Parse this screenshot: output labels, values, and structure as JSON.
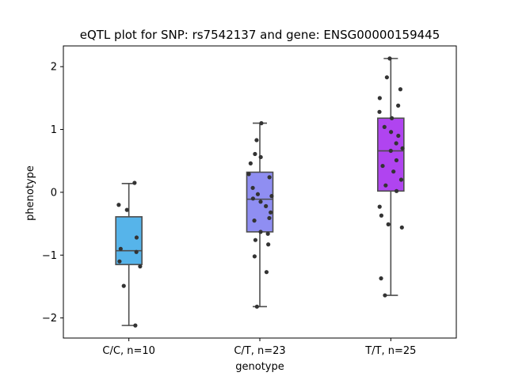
{
  "chart_data": {
    "type": "box",
    "title": "eQTL plot for SNP: rs7542137 and gene: ENSG00000159445",
    "xlabel": "genotype",
    "ylabel": "phenotype",
    "ylim": [
      -2.32,
      2.33
    ],
    "yticks": [
      -2,
      -1,
      0,
      1,
      2
    ],
    "ytick_labels": [
      "−2",
      "−1",
      "0",
      "1",
      "2"
    ],
    "grid": false,
    "groups": [
      {
        "label": "C/C, n=10",
        "color": "#56b4ea",
        "box": {
          "whisker_low": -2.12,
          "q1": -1.15,
          "median": -0.93,
          "q3": -0.39,
          "whisker_high": 0.14
        },
        "points": [
          0.15,
          -0.2,
          -0.28,
          -0.72,
          -0.9,
          -0.95,
          -1.1,
          -1.18,
          -1.49,
          -2.12
        ]
      },
      {
        "label": "C/T, n=23",
        "color": "#8f8ef2",
        "box": {
          "whisker_low": -1.82,
          "q1": -0.63,
          "median": -0.11,
          "q3": 0.32,
          "whisker_high": 1.1
        },
        "points": [
          1.1,
          0.83,
          0.61,
          0.56,
          0.46,
          0.29,
          0.24,
          0.07,
          -0.03,
          -0.06,
          -0.1,
          -0.15,
          -0.32,
          -0.41,
          -0.45,
          -0.63,
          -0.66,
          -0.76,
          -0.83,
          -1.02,
          -1.27,
          -1.82,
          -0.22
        ]
      },
      {
        "label": "T/T, n=25",
        "color": "#b044f0",
        "box": {
          "whisker_low": -1.64,
          "q1": 0.02,
          "median": 0.66,
          "q3": 1.18,
          "whisker_high": 2.13
        },
        "points": [
          2.13,
          1.83,
          1.64,
          1.5,
          1.38,
          1.28,
          1.18,
          1.04,
          0.96,
          0.9,
          0.78,
          0.7,
          0.66,
          0.51,
          0.42,
          0.33,
          0.2,
          0.11,
          0.02,
          -0.23,
          -0.37,
          -0.51,
          -0.56,
          -1.37,
          -1.64
        ]
      }
    ]
  }
}
